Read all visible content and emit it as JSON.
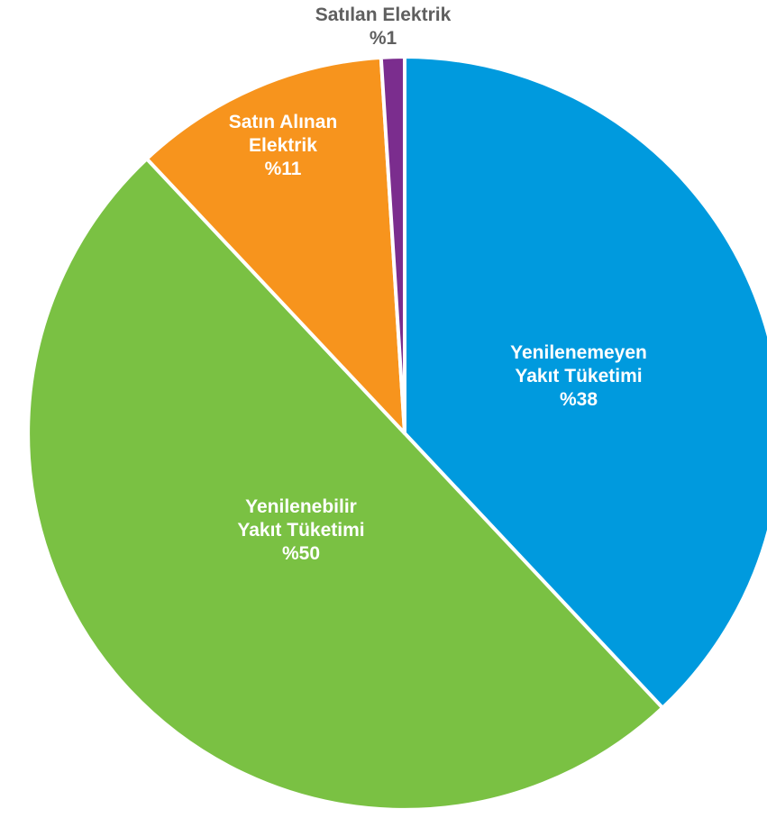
{
  "chart_data": {
    "type": "pie",
    "title": "",
    "start_angle_deg": 0,
    "direction": "clockwise",
    "legend": "none",
    "slices": [
      {
        "name": "Yenilenemeyen Yakıt Tüketimi",
        "value": 38,
        "label_lines": [
          "Yenilenemeyen",
          "Yakıt Tüketimi",
          "%38"
        ],
        "color": "#009ADE",
        "label_color": "#ffffff",
        "label_position": "inside"
      },
      {
        "name": "Yenilenebilir Yakıt Tüketimi",
        "value": 50,
        "label_lines": [
          "Yenilenebilir",
          "Yakıt Tüketimi",
          "%50"
        ],
        "color": "#7AC143",
        "label_color": "#ffffff",
        "label_position": "inside"
      },
      {
        "name": "Satın Alınan Elektrik",
        "value": 11,
        "label_lines": [
          "Satın Alınan",
          "Elektrik",
          "%11"
        ],
        "color": "#F7941D",
        "label_color": "#ffffff",
        "label_position": "inside"
      },
      {
        "name": "Satılan Elektrik",
        "value": 1,
        "label_lines": [
          "Satılan Elektrik",
          "%1"
        ],
        "color": "#7B2D8E",
        "label_color": "#5F5F5F",
        "label_position": "outside-top"
      }
    ]
  }
}
